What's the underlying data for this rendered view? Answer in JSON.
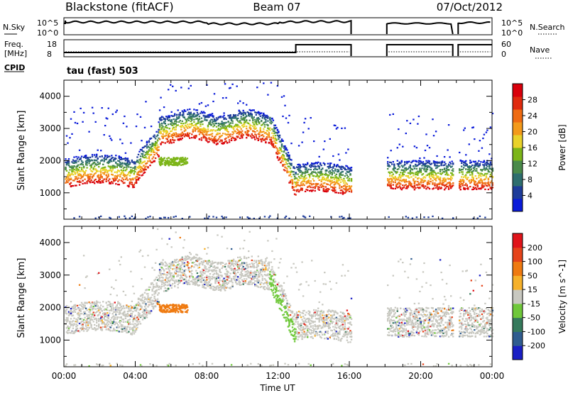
{
  "header": {
    "radar": "Blackstone (fitACF)",
    "beam": "Beam 07",
    "date": "07/Oct/2012"
  },
  "params": {
    "nsky_label": "N.Sky",
    "nsearch_label": "N.Search",
    "nsky_tick_top": "10^5",
    "nsky_tick_bottom": "10^0",
    "freq_label_line1": "Freq.",
    "freq_label_line2": "[MHz]",
    "freq_tick_top": "18",
    "freq_tick_bottom": "8",
    "nave_label": "Nave",
    "nave_tick_top": "60",
    "nave_tick_bottom": "0",
    "cpid_label": "CPID",
    "cpid_value": "tau (fast) 503",
    "colors": {
      "line": "#000000"
    }
  },
  "chart_data": [
    {
      "type": "heatmap",
      "title": "",
      "parameter": "Power",
      "colorbar": {
        "label": "Power [dB]",
        "ticks": [
          "4",
          "8",
          "12",
          "16",
          "20",
          "24",
          "28"
        ],
        "range": [
          0,
          32
        ],
        "colors": [
          "#0a1bd9",
          "#1e3c9a",
          "#2e6e6e",
          "#4a8a4a",
          "#7cb518",
          "#e9d22a",
          "#f39a1a",
          "#ef6b12",
          "#e02a0e",
          "#d9000b"
        ]
      },
      "xlabel": "",
      "ylabel": "Slant Range [km]",
      "x_ticks": [
        "",
        "",
        "",
        "",
        "",
        "",
        ""
      ],
      "y_ticks": [
        "1000",
        "2000",
        "3000",
        "4000"
      ],
      "x_range_hours": [
        0,
        24
      ],
      "y_range_km": [
        180,
        4500
      ]
    },
    {
      "type": "heatmap",
      "title": "",
      "parameter": "Velocity",
      "colorbar": {
        "label": "Velocity [m s^-1]",
        "ticks": [
          "200",
          "100",
          "50",
          "15",
          "-15",
          "-50",
          "-100",
          "-200"
        ],
        "range": [
          -250,
          250
        ],
        "colors": [
          "#1a1fc4",
          "#2f5c8f",
          "#357a5c",
          "#6fc83a",
          "#c8c8c0",
          "#f6b12a",
          "#ef7a10",
          "#e5431a",
          "#e0141a"
        ]
      },
      "xlabel": "Time UT",
      "ylabel": "Slant Range [km]",
      "x_ticks": [
        "00:00",
        "04:00",
        "08:00",
        "12:00",
        "16:00",
        "20:00",
        "00:00"
      ],
      "y_ticks": [
        "1000",
        "2000",
        "3000",
        "4000"
      ],
      "x_range_hours": [
        0,
        24
      ],
      "y_range_km": [
        180,
        4500
      ]
    }
  ]
}
